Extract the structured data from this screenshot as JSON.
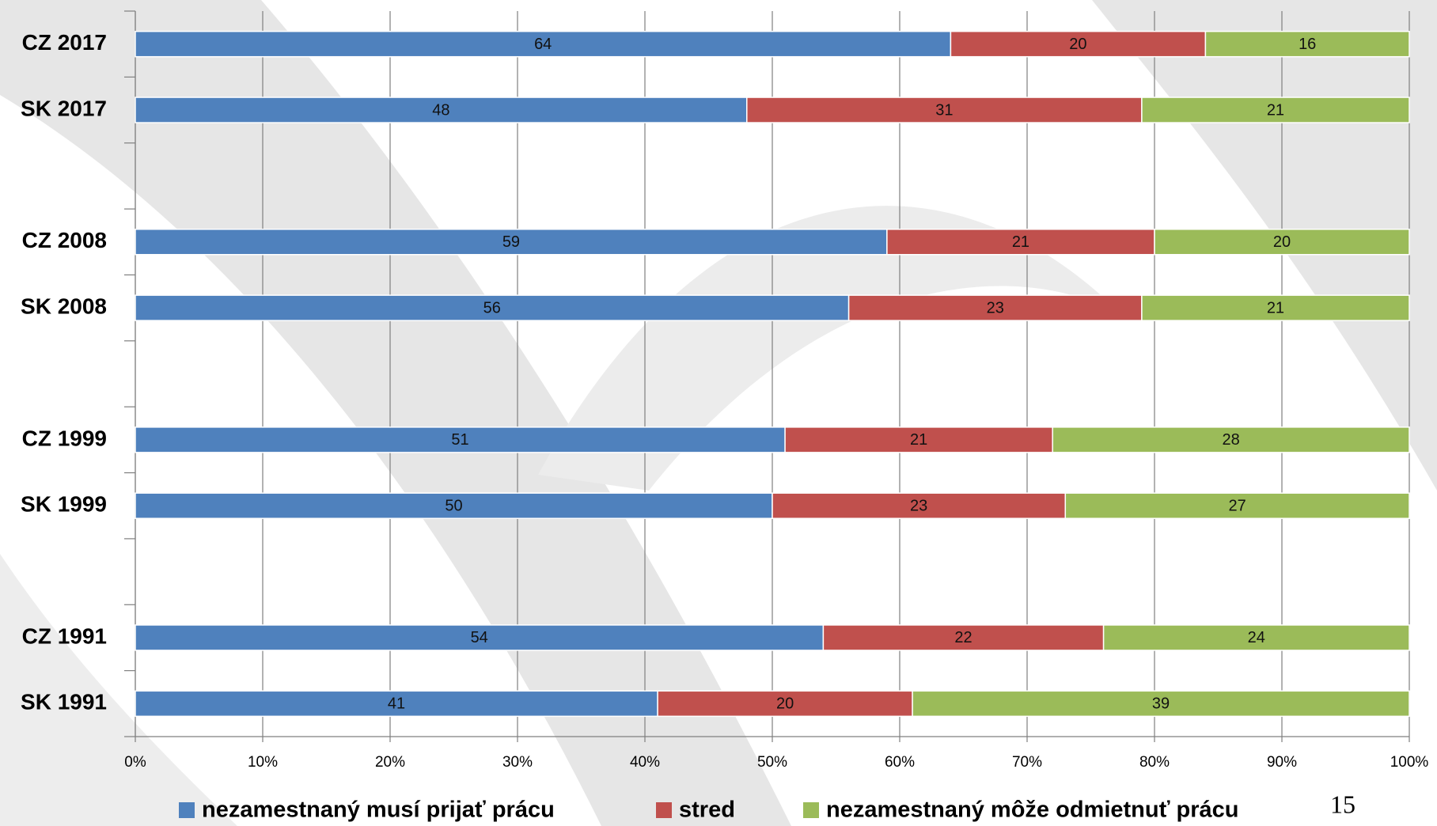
{
  "chart_data": {
    "type": "stacked_bar_horizontal",
    "categories": [
      "CZ 2017",
      "SK 2017",
      null,
      "CZ 2008",
      "SK 2008",
      null,
      "CZ 1999",
      "SK 1999",
      null,
      "CZ 1991",
      "SK 1991"
    ],
    "series": [
      {
        "name": "nezamestnaný musí prijať prácu",
        "color": "#4f81bd",
        "values": [
          64,
          48,
          null,
          59,
          56,
          null,
          51,
          50,
          null,
          54,
          41
        ]
      },
      {
        "name": "stred",
        "color": "#c0504d",
        "values": [
          20,
          31,
          null,
          21,
          23,
          null,
          21,
          23,
          null,
          22,
          20
        ]
      },
      {
        "name": "nezamestnaný môže odmietnuť prácu",
        "color": "#9bbb59",
        "values": [
          16,
          21,
          null,
          20,
          21,
          null,
          28,
          27,
          null,
          24,
          39
        ]
      }
    ],
    "xlim": [
      0,
      100
    ],
    "xticks": [
      {
        "value": 0,
        "label": "0%"
      },
      {
        "value": 10,
        "label": "10%"
      },
      {
        "value": 20,
        "label": "20%"
      },
      {
        "value": 30,
        "label": "30%"
      },
      {
        "value": 40,
        "label": "40%"
      },
      {
        "value": 50,
        "label": "50%"
      },
      {
        "value": 60,
        "label": "60%"
      },
      {
        "value": 70,
        "label": "70%"
      },
      {
        "value": 80,
        "label": "80%"
      },
      {
        "value": 90,
        "label": "90%"
      },
      {
        "value": 100,
        "label": "100%"
      }
    ],
    "grid": true,
    "legend": "bottom"
  },
  "page_number": "15"
}
